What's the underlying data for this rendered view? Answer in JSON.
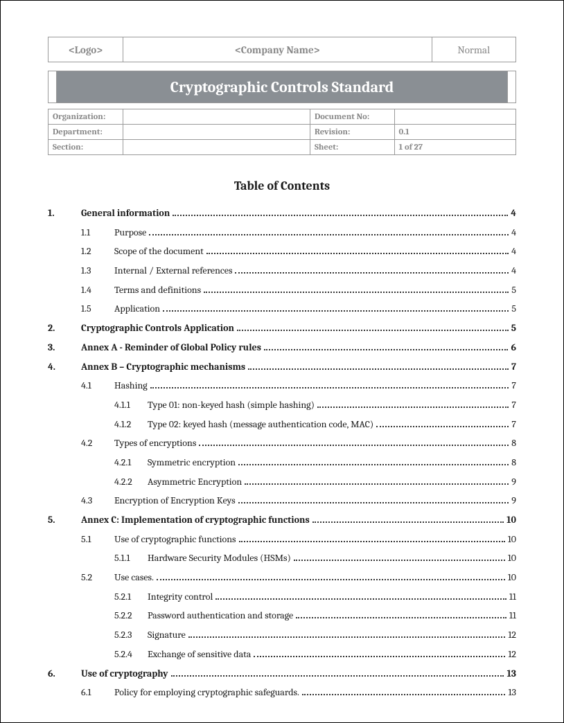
{
  "header": {
    "logo": "<Logo>",
    "company": "<Company Name>",
    "classification": "Normal"
  },
  "title": "Cryptographic Controls Standard",
  "meta": {
    "labels": {
      "organization": "Organization:",
      "documentNo": "Document No:",
      "department": "Department:",
      "revision": "Revision:",
      "section": "Section:",
      "sheet": "Sheet:"
    },
    "values": {
      "organization": "",
      "documentNo": "",
      "department": "",
      "revision": "0.1",
      "section": "",
      "sheet": "1 of 27"
    }
  },
  "tocHeading": "Table of Contents",
  "toc": [
    {
      "level": 0,
      "num": "1.",
      "title": "General information",
      "page": "4"
    },
    {
      "level": 1,
      "num": "1.1",
      "title": "Purpose",
      "page": "4"
    },
    {
      "level": 1,
      "num": "1.2",
      "title": "Scope of the document",
      "page": "4"
    },
    {
      "level": 1,
      "num": "1.3",
      "title": "Internal / External references",
      "page": "4"
    },
    {
      "level": 1,
      "num": "1.4",
      "title": "Terms and definitions",
      "page": "5"
    },
    {
      "level": 1,
      "num": "1.5",
      "title": "Application",
      "page": "5"
    },
    {
      "level": 0,
      "num": "2.",
      "title": "Cryptographic Controls Application",
      "page": "5"
    },
    {
      "level": 0,
      "num": "3.",
      "title": "Annex A - Reminder of Global Policy rules",
      "page": "6"
    },
    {
      "level": 0,
      "num": "4.",
      "title": "Annex B – Cryptographic mechanisms",
      "page": "7"
    },
    {
      "level": 1,
      "num": "4.1",
      "title": "Hashing",
      "page": "7"
    },
    {
      "level": 2,
      "num": "4.1.1",
      "title": "Type 01: non-keyed hash (simple hashing)",
      "page": "7"
    },
    {
      "level": 2,
      "num": "4.1.2",
      "title": "Type 02: keyed hash (message authentication code, MAC)",
      "page": "7"
    },
    {
      "level": 1,
      "num": "4.2",
      "title": "Types of encryptions",
      "page": "8"
    },
    {
      "level": 2,
      "num": "4.2.1",
      "title": "Symmetric encryption",
      "page": "8"
    },
    {
      "level": 2,
      "num": "4.2.2",
      "title": "Asymmetric Encryption",
      "page": "9"
    },
    {
      "level": 1,
      "num": "4.3",
      "title": "Encryption of Encryption Keys",
      "page": "9"
    },
    {
      "level": 0,
      "num": "5.",
      "title": "Annex C: Implementation of cryptographic functions",
      "page": "10"
    },
    {
      "level": 1,
      "num": "5.1",
      "title": "Use of cryptographic functions",
      "page": "10"
    },
    {
      "level": 2,
      "num": "5.1.1",
      "title": "Hardware Security Modules (HSMs)",
      "page": "10"
    },
    {
      "level": 1,
      "num": "5.2",
      "title": "Use cases.",
      "page": "10"
    },
    {
      "level": 2,
      "num": "5.2.1",
      "title": "Integrity control",
      "page": "11"
    },
    {
      "level": 2,
      "num": "5.2.2",
      "title": "Password authentication and storage",
      "page": "11"
    },
    {
      "level": 2,
      "num": "5.2.3",
      "title": "Signature",
      "page": "12"
    },
    {
      "level": 2,
      "num": "5.2.4",
      "title": "Exchange of sensitive data",
      "page": "12"
    },
    {
      "level": 0,
      "num": "6.",
      "title": "Use of cryptography",
      "page": "13"
    },
    {
      "level": 1,
      "num": "6.1",
      "title": "Policy for employing cryptographic safeguards.",
      "page": "13"
    }
  ]
}
